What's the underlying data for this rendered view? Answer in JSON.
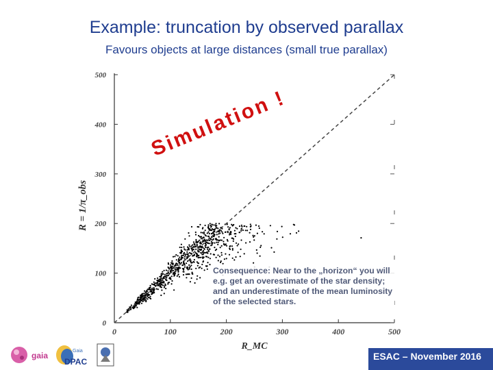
{
  "slide": {
    "title": "Example: truncation by observed parallax",
    "subtitle": "Favours objects at large distances (small true parallax)",
    "note": "Consequence: Near to the „horizon“ you will e.g. get an overestimate of the star density; and an underestimate of the mean luminosity of the selected stars.",
    "footer": "ESAC – November 2016",
    "colors": {
      "title": "#1f3d8f",
      "annotation": "#d01010",
      "points": "#000000",
      "footer_bg": "#2b4a9b"
    },
    "logos": [
      "gaia-logo",
      "gaia-dpac-logo",
      "esa-logo"
    ]
  },
  "chart_data": {
    "type": "scatter",
    "title": "",
    "xlabel": "R_MC",
    "ylabel": "R = 1/π_obs",
    "xlim": [
      0,
      500
    ],
    "ylim": [
      0,
      500
    ],
    "x_ticks": [
      0,
      100,
      200,
      300,
      400,
      500
    ],
    "y_ticks": [
      0,
      100,
      200,
      300,
      400,
      500
    ],
    "x_tick_labels": [
      "0",
      "100",
      "200",
      "300",
      "400",
      "500"
    ],
    "y_tick_labels": [
      "0",
      "100",
      "200",
      "300",
      "400",
      "500"
    ],
    "reference_line": {
      "style": "dashed",
      "from": [
        0,
        0
      ],
      "to": [
        500,
        500
      ]
    },
    "annotation": "Simulation !",
    "grid": false,
    "point_count": 900,
    "truncation_limit_R": 200
  }
}
